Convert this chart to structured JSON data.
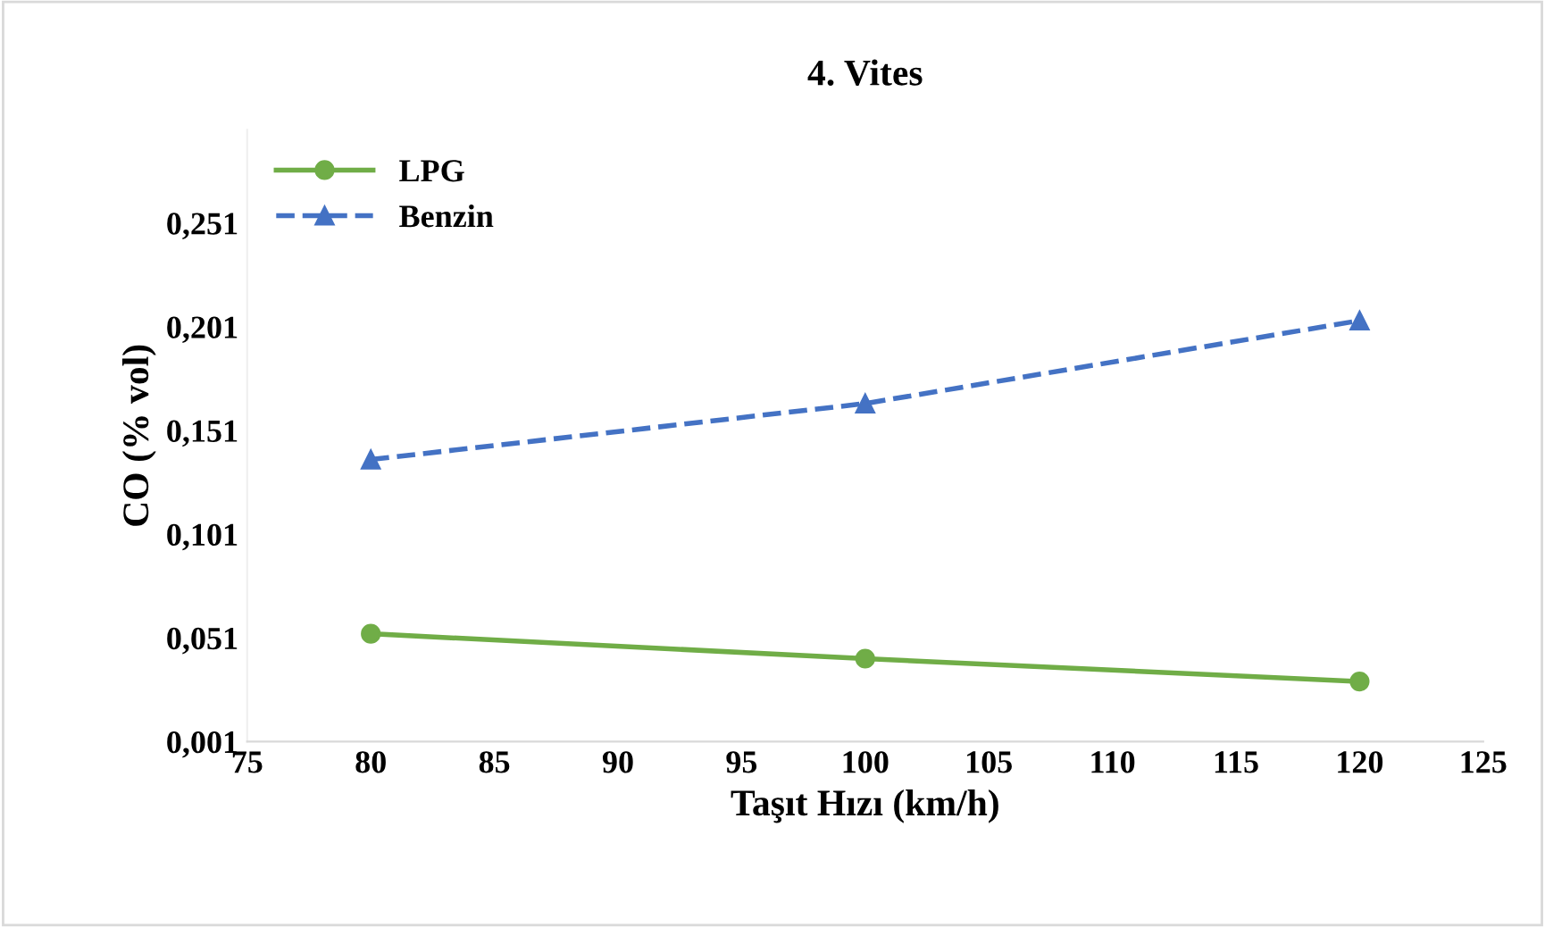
{
  "chart_data": {
    "type": "line",
    "title": "4. Vites",
    "xlabel": "Taşıt Hızı (km/h)",
    "ylabel": "CO (% vol)",
    "x": [
      80,
      100,
      120
    ],
    "series": [
      {
        "name": "LPG",
        "color": "#70ad47",
        "values": [
          0.053,
          0.041,
          0.03
        ],
        "marker": "circle",
        "line_style": "solid"
      },
      {
        "name": "Benzin",
        "color": "#4472c4",
        "values": [
          0.137,
          0.164,
          0.204
        ],
        "marker": "triangle",
        "line_style": "dashed"
      }
    ],
    "xlim": [
      75,
      125
    ],
    "xticks": [
      75,
      80,
      85,
      90,
      95,
      100,
      105,
      110,
      115,
      120,
      125
    ],
    "ylim": [
      0.001,
      0.296
    ],
    "yticks": [
      {
        "value": 0.001,
        "label": "0,001"
      },
      {
        "value": 0.051,
        "label": "0,051"
      },
      {
        "value": 0.101,
        "label": "0,101"
      },
      {
        "value": 0.151,
        "label": "0,151"
      },
      {
        "value": 0.201,
        "label": "0,201"
      },
      {
        "value": 0.251,
        "label": "0,251"
      }
    ],
    "grid": false,
    "legend": "top left"
  }
}
